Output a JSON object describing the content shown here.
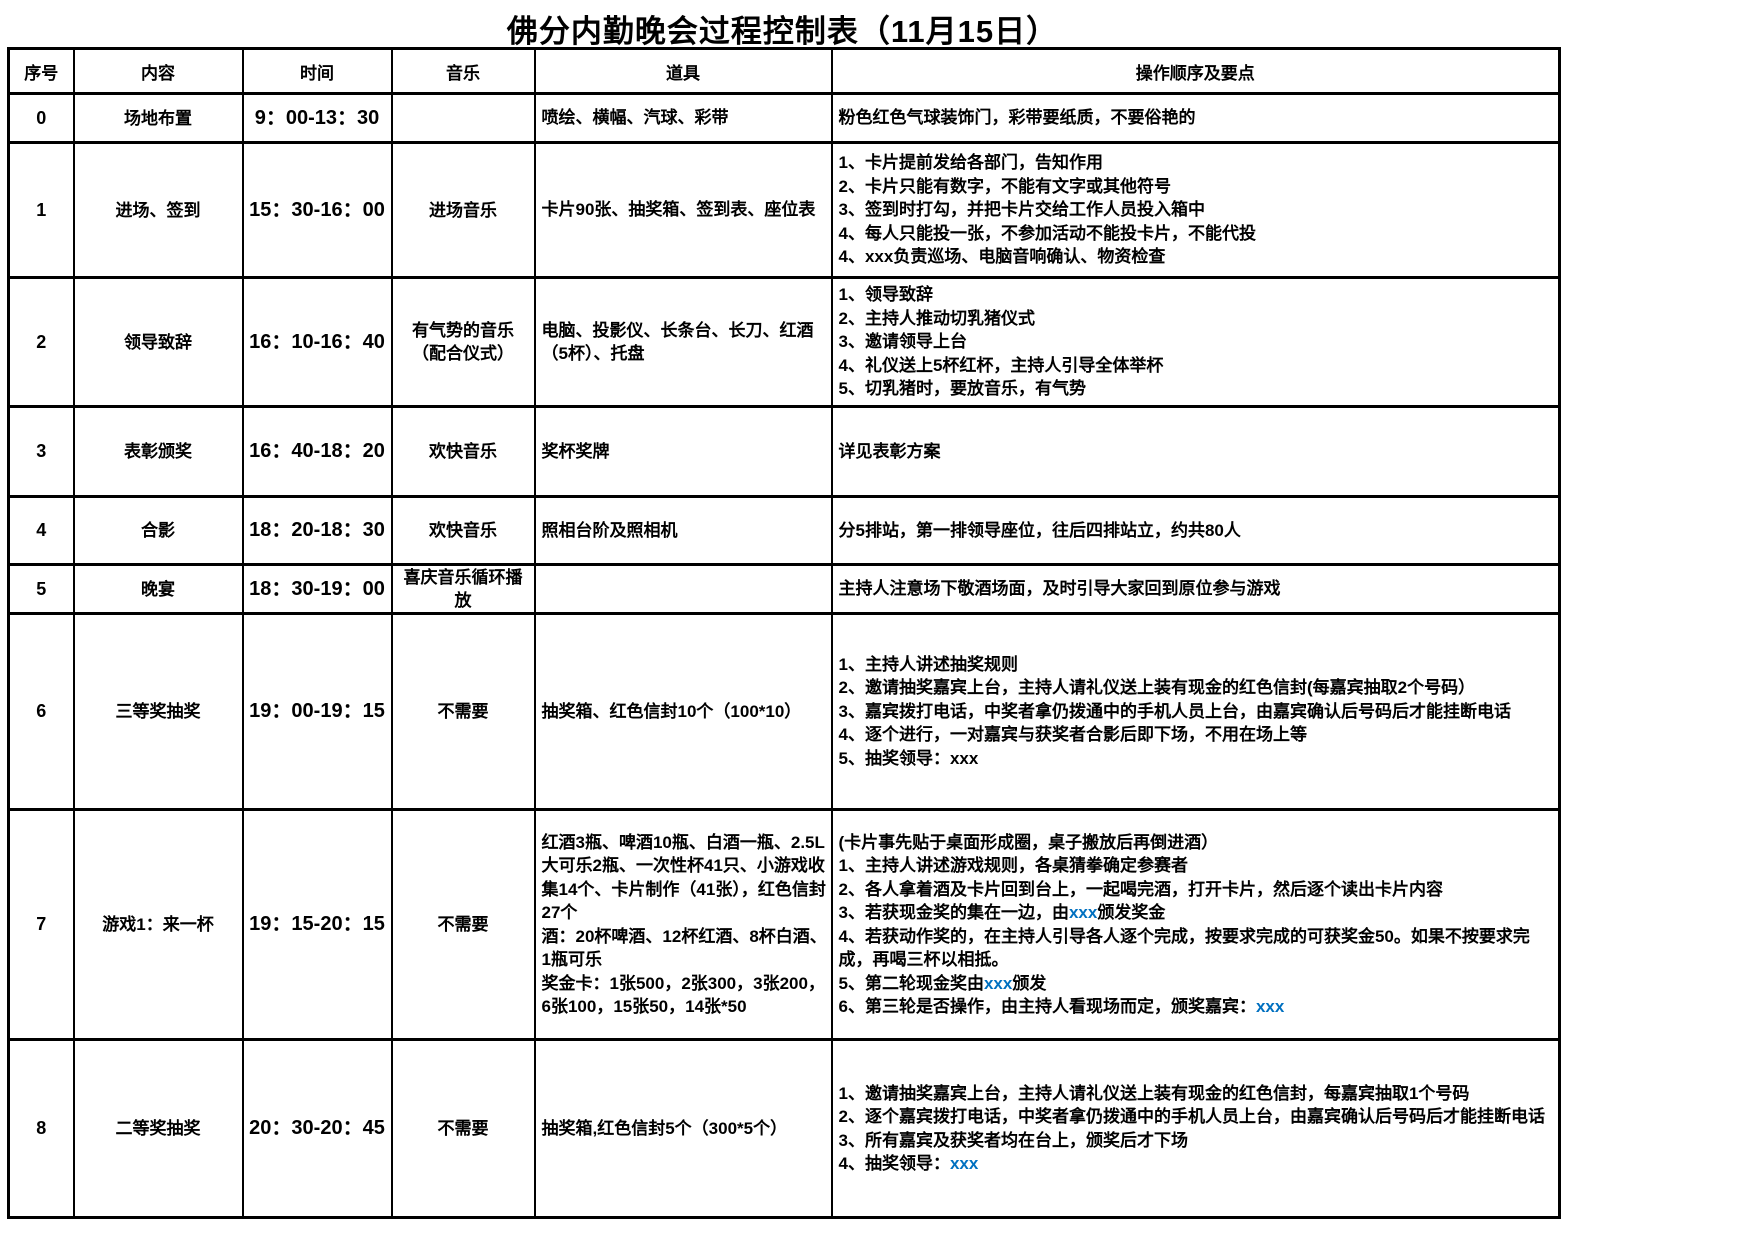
{
  "title": "佛分内勤晚会过程控制表（11月15日）",
  "colors": {
    "text": "#000000",
    "accent_blue": "#0070C0",
    "border": "#000000",
    "page_bg": "#ffffff"
  },
  "table": {
    "headers": [
      "序号",
      "内容",
      "时间",
      "音乐",
      "道具",
      "操作顺序及要点"
    ],
    "rows": [
      {
        "no": "0",
        "content": "场地布置",
        "time": "9：00-13：30",
        "music": "",
        "props": [
          "喷绘、横幅、汽球、彩带"
        ],
        "ops": [
          "粉色红色气球装饰门，彩带要纸质，不要俗艳的"
        ]
      },
      {
        "no": "1",
        "content": "进场、签到",
        "time": "15：30-16：00",
        "music": "进场音乐",
        "props": [
          "卡片90张、抽奖箱、签到表、座位表"
        ],
        "ops": [
          "1、卡片提前发给各部门，告知作用",
          "2、卡片只能有数字，不能有文字或其他符号",
          "3、签到时打勾，并把卡片交给工作人员投入箱中",
          "4、每人只能投一张，不参加活动不能投卡片，不能代投",
          "4、xxx负责巡场、电脑音响确认、物资检查"
        ]
      },
      {
        "no": "2",
        "content": "领导致辞",
        "time": "16：10-16：40",
        "music": "有气势的音乐（配合仪式）",
        "props": [
          "电脑、投影仪、长条台、长刀、红酒（5杯）、托盘"
        ],
        "ops": [
          "1、领导致辞",
          "2、主持人推动切乳猪仪式",
          "3、邀请领导上台",
          "4、礼仪送上5杯红杯，主持人引导全体举杯",
          "5、切乳猪时，要放音乐，有气势"
        ]
      },
      {
        "no": "3",
        "content": "表彰颁奖",
        "time": "16：40-18：20",
        "music": "欢快音乐",
        "props": [
          "奖杯奖牌"
        ],
        "ops": [
          "详见表彰方案"
        ]
      },
      {
        "no": "4",
        "content": "合影",
        "time": "18：20-18：30",
        "music": "欢快音乐",
        "props": [
          "照相台阶及照相机"
        ],
        "ops": [
          "分5排站，第一排领导座位，往后四排站立，约共80人"
        ]
      },
      {
        "no": "5",
        "content": "晚宴",
        "time": "18：30-19：00",
        "music": "喜庆音乐循环播放",
        "props": [],
        "ops": [
          "主持人注意场下敬酒场面，及时引导大家回到原位参与游戏"
        ]
      },
      {
        "no": "6",
        "content": "三等奖抽奖",
        "time": "19：00-19：15",
        "music": "不需要",
        "props": [
          "抽奖箱、红色信封10个（100*10）"
        ],
        "ops": [
          "1、主持人讲述抽奖规则",
          "2、邀请抽奖嘉宾上台，主持人请礼仪送上装有现金的红色信封(每嘉宾抽取2个号码）",
          "3、嘉宾拨打电话，中奖者拿仍拨通中的手机人员上台，由嘉宾确认后号码后才能挂断电话",
          "4、逐个进行，一对嘉宾与获奖者合影后即下场，不用在场上等",
          "5、抽奖领导：xxx"
        ]
      },
      {
        "no": "7",
        "content": "游戏1：来一杯",
        "time": "19：15-20：15",
        "music": "不需要",
        "props": [
          "红酒3瓶、啤酒10瓶、白酒一瓶、2.5L大可乐2瓶、一次性杯41只、小游戏收集14个、卡片制作（41张），红色信封27个",
          "酒：20杯啤酒、12杯红酒、8杯白酒、1瓶可乐",
          "奖金卡：1张500，2张300，3张200，6张100，15张50，14张*50"
        ],
        "ops": [
          "(卡片事先贴于桌面形成圈，桌子搬放后再倒进酒）",
          "1、主持人讲述游戏规则，各桌猜拳确定参赛者",
          "2、各人拿着酒及卡片回到台上，一起喝完酒，打开卡片，然后逐个读出卡片内容",
          [
            {
              "t": "3、若获现金奖的集在一边，由"
            },
            {
              "t": "xxx",
              "blue": true
            },
            {
              "t": "颁发奖金"
            }
          ],
          "4、若获动作奖的，在主持人引导各人逐个完成，按要求完成的可获奖金50。如果不按要求完成，再喝三杯以相抵。",
          [
            {
              "t": "5、第二轮现金奖由"
            },
            {
              "t": "xxx",
              "blue": true
            },
            {
              "t": "颁发"
            }
          ],
          [
            {
              "t": "6、第三轮是否操作，由主持人看现场而定，颁奖嘉宾："
            },
            {
              "t": "xxx",
              "blue": true
            }
          ]
        ]
      },
      {
        "no": "8",
        "content": "二等奖抽奖",
        "time": "20：30-20：45",
        "music": "不需要",
        "props": [
          "抽奖箱,红色信封5个（300*5个）"
        ],
        "ops": [
          "1、邀请抽奖嘉宾上台，主持人请礼仪送上装有现金的红色信封，每嘉宾抽取1个号码",
          "2、逐个嘉宾拨打电话，中奖者拿仍拨通中的手机人员上台，由嘉宾确认后号码后才能挂断电话",
          "3、所有嘉宾及获奖者均在台上，颁奖后才下场",
          [
            {
              "t": "4、抽奖领导："
            },
            {
              "t": "xxx",
              "blue": true
            }
          ]
        ]
      }
    ]
  }
}
